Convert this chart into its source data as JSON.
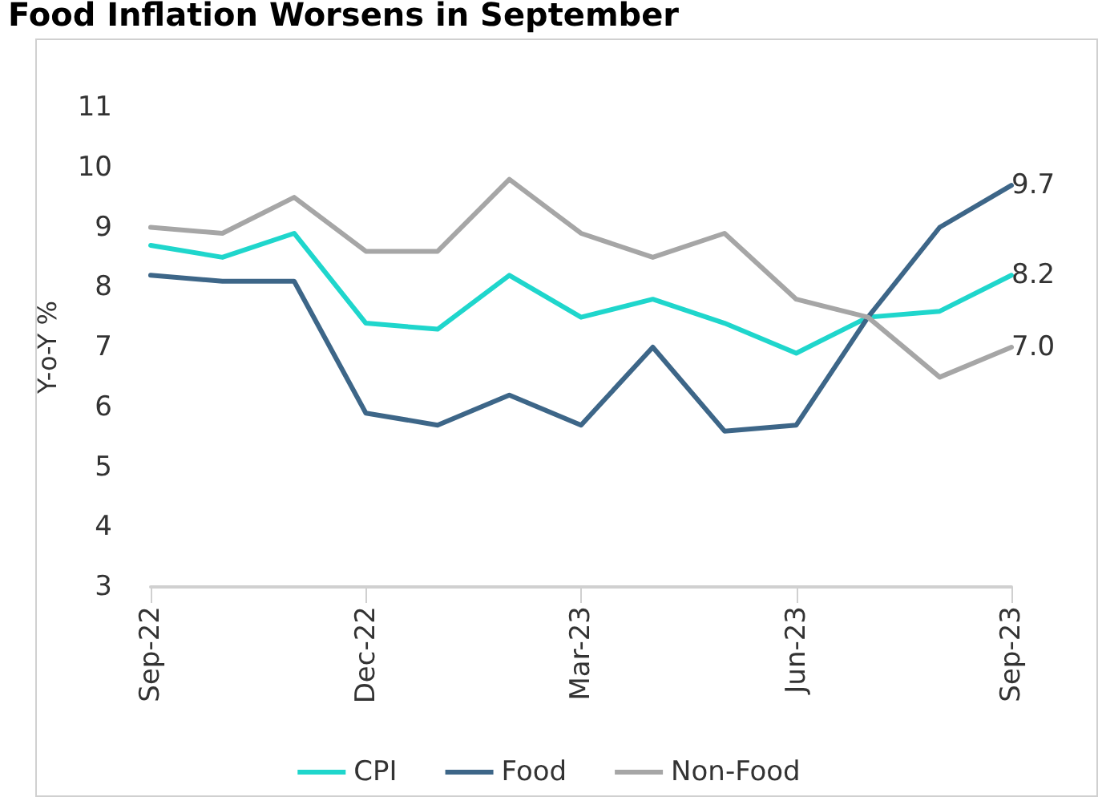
{
  "chart_data": {
    "type": "line",
    "title": "Food Inflation Worsens in September",
    "ylabel": "Y-o-Y %",
    "categories": [
      "Sep-22",
      null,
      null,
      "Dec-22",
      null,
      null,
      "Mar-23",
      null,
      null,
      "Jun-23",
      null,
      null,
      "Sep-23"
    ],
    "series": [
      {
        "name": "CPI",
        "color": "#1fd6cc",
        "values": [
          8.7,
          8.5,
          8.9,
          7.4,
          7.3,
          8.2,
          7.5,
          7.8,
          7.4,
          6.9,
          7.5,
          7.6,
          8.2
        ],
        "value_labels": [
          null,
          null,
          null,
          null,
          null,
          null,
          null,
          null,
          null,
          null,
          null,
          null,
          "8.2"
        ]
      },
      {
        "name": "Food",
        "color": "#3d6688",
        "values": [
          8.2,
          8.1,
          8.1,
          5.9,
          5.7,
          6.2,
          5.7,
          7.0,
          5.6,
          5.7,
          7.5,
          9.0,
          9.7
        ],
        "value_labels": [
          null,
          null,
          null,
          null,
          null,
          null,
          null,
          null,
          null,
          null,
          null,
          null,
          "9.7"
        ]
      },
      {
        "name": "Non-Food",
        "color": "#a6a6a6",
        "values": [
          9.0,
          8.9,
          9.5,
          8.6,
          8.6,
          9.8,
          8.9,
          8.5,
          8.9,
          7.8,
          7.5,
          6.5,
          7.0
        ],
        "value_labels": [
          null,
          null,
          null,
          null,
          null,
          null,
          null,
          null,
          null,
          null,
          null,
          null,
          "7.0"
        ]
      }
    ],
    "ylim": [
      3,
      11
    ],
    "yticks": [
      3,
      4,
      5,
      6,
      7,
      8,
      9,
      10,
      11
    ],
    "grid": false,
    "legend": "bottom",
    "marker": "none",
    "line_style": "solid"
  }
}
